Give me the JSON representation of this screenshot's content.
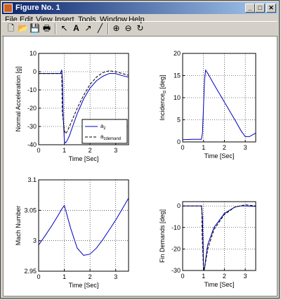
{
  "window": {
    "title": "Figure No. 1",
    "controls": [
      "_",
      "□",
      "✕"
    ]
  },
  "menu": [
    "File",
    "Edit",
    "View",
    "Insert",
    "Tools",
    "Window",
    "Help"
  ],
  "toolbar": [
    "new-icon",
    "open-icon",
    "save-icon",
    "print-icon",
    "pointer-icon",
    "text-icon",
    "arrow-icon",
    "line-icon",
    "zoom-in-icon",
    "zoom-out-icon",
    "rotate-icon"
  ],
  "colors": {
    "series1": "#0000c0",
    "series2": "#000000",
    "plot_bg": "#ffffff"
  },
  "chart_data": [
    {
      "type": "line",
      "xlabel": "Time [Sec]",
      "ylabel": "Normal Acceleration [g]",
      "xlim": [
        0,
        3.5
      ],
      "ylim": [
        -40,
        10
      ],
      "xticks": [
        0,
        1,
        2,
        3
      ],
      "yticks": [
        10,
        0,
        -10,
        -20,
        -30,
        -40
      ],
      "grid": true,
      "legend_position": "bottom-right",
      "series": [
        {
          "name": "a",
          "name_sub": "z",
          "style": "solid",
          "x": [
            0,
            0.5,
            0.85,
            0.9,
            0.93,
            0.96,
            1.0,
            1.05,
            1.1,
            1.2,
            1.3,
            1.5,
            1.75,
            2.0,
            2.25,
            2.5,
            2.75,
            3.0,
            3.2,
            3.5
          ],
          "y": [
            -1,
            -1,
            -1,
            1,
            -5,
            -25,
            -38,
            -39,
            -38,
            -35,
            -31,
            -23,
            -15,
            -9,
            -5,
            -2.5,
            -1,
            -1,
            -2,
            -3
          ]
        },
        {
          "name": "a",
          "name_sub": "zdemand",
          "style": "dashed",
          "x": [
            0,
            0.5,
            0.9,
            0.92,
            1.0,
            1.05,
            1.1,
            1.2,
            1.5,
            1.75,
            2.0,
            2.25,
            2.5,
            2.75,
            3.0,
            3.5
          ],
          "y": [
            -1,
            -1,
            -1,
            -22,
            -32,
            -34,
            -33,
            -30,
            -20,
            -13,
            -7,
            -3,
            -0.5,
            0.5,
            0,
            -2
          ]
        }
      ]
    },
    {
      "type": "line",
      "xlabel": "Time [Sec]",
      "ylabel": "Incidence",
      "ylabel_sub": "α",
      "ylabel_suffix": " [deg]",
      "xlim": [
        0,
        3.5
      ],
      "ylim": [
        0,
        20
      ],
      "xticks": [
        0,
        1,
        2,
        3
      ],
      "yticks": [
        0,
        5,
        10,
        15,
        20
      ],
      "grid": true,
      "series": [
        {
          "style": "solid",
          "x": [
            0,
            0.5,
            0.9,
            0.95,
            1.0,
            1.05,
            1.1,
            1.2,
            1.5,
            2.0,
            2.5,
            2.8,
            3.0,
            3.2,
            3.5
          ],
          "y": [
            0.5,
            0.6,
            0.6,
            2,
            8,
            14,
            16.2,
            15.5,
            13,
            9,
            5,
            2.5,
            1.2,
            1.2,
            2
          ]
        }
      ]
    },
    {
      "type": "line",
      "xlabel": "Time [Sec]",
      "ylabel": "Mach Number",
      "xlim": [
        0,
        3.5
      ],
      "ylim": [
        2.95,
        3.1
      ],
      "xticks": [
        0,
        1,
        2,
        3
      ],
      "yticks": [
        3.1,
        3.05,
        3,
        2.95
      ],
      "grid": true,
      "series": [
        {
          "style": "solid",
          "x": [
            0,
            0.25,
            0.5,
            0.75,
            0.9,
            1.0,
            1.25,
            1.5,
            1.75,
            2.0,
            2.25,
            2.5,
            2.75,
            3.0,
            3.25,
            3.5
          ],
          "y": [
            2.993,
            3.008,
            3.024,
            3.041,
            3.052,
            3.058,
            3.02,
            2.988,
            2.976,
            2.978,
            2.988,
            3.002,
            3.018,
            3.034,
            3.052,
            3.07
          ]
        }
      ]
    },
    {
      "type": "line",
      "xlabel": "Time [Sec]",
      "ylabel": "Fin Demands [deg]",
      "xlim": [
        0,
        3.5
      ],
      "ylim": [
        -30,
        2
      ],
      "xticks": [
        0,
        1,
        2,
        3
      ],
      "yticks": [
        0,
        -10,
        -20,
        -30
      ],
      "grid": true,
      "series": [
        {
          "style": "solid",
          "x": [
            0,
            0.5,
            0.9,
            0.95,
            1.0,
            1.02,
            1.05,
            1.1,
            1.2,
            1.5,
            2.0,
            2.5,
            2.75,
            3.0,
            3.5
          ],
          "y": [
            0,
            0,
            0,
            -5,
            -28,
            -30,
            -29,
            -25,
            -18,
            -10,
            -3.5,
            -0.5,
            0,
            0,
            -0.2
          ]
        },
        {
          "style": "dashed",
          "x": [
            0,
            0.92,
            0.93,
            1.0,
            1.02,
            1.05,
            1.1,
            1.2,
            1.5,
            2.0,
            2.5,
            3.0,
            3.5
          ],
          "y": [
            0,
            0,
            -12,
            -30,
            -30,
            -29,
            -26,
            -20,
            -11,
            -4,
            -0.5,
            0.5,
            0
          ]
        }
      ]
    }
  ]
}
